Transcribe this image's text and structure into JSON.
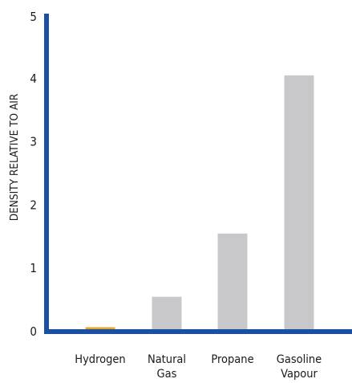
{
  "chart_data": {
    "type": "bar",
    "title": "",
    "xlabel": "",
    "ylabel": "DENSITY RELATIVE TO AIR",
    "ylim": [
      0,
      5
    ],
    "yticks": [
      0,
      1,
      2,
      3,
      4,
      5
    ],
    "categories": [
      [
        "Hydrogen"
      ],
      [
        "Natural",
        "Gas"
      ],
      [
        "Propane"
      ],
      [
        "Gasoline",
        "Vapour"
      ]
    ],
    "values": [
      0.07,
      0.55,
      1.55,
      4.05
    ],
    "bar_colors": [
      "#e8a825",
      "#c8c8ca",
      "#c8c8ca",
      "#c8c8ca"
    ],
    "axis_color": "#1a4fa3",
    "grid": false,
    "legend": "none"
  }
}
